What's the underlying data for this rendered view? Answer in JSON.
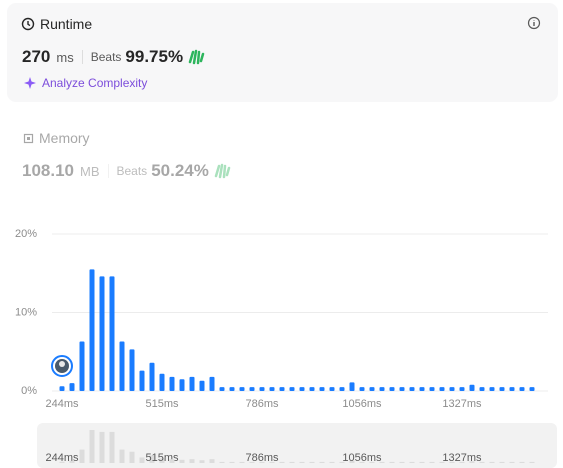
{
  "runtime": {
    "title": "Runtime",
    "value": "270",
    "unit": "ms",
    "beats_label": "Beats",
    "beats": "99.75%",
    "analyze": "Analyze Complexity"
  },
  "memory": {
    "title": "Memory",
    "value": "108.10",
    "unit": "MB",
    "beats_label": "Beats",
    "beats": "50.24%"
  },
  "chart_data": {
    "type": "bar",
    "categories": [
      "244ms",
      null,
      null,
      null,
      null,
      null,
      null,
      null,
      null,
      null,
      "515ms",
      null,
      null,
      null,
      null,
      null,
      null,
      null,
      null,
      null,
      "786ms",
      null,
      null,
      null,
      null,
      null,
      null,
      null,
      null,
      null,
      "1056ms",
      null,
      null,
      null,
      null,
      null,
      null,
      null,
      null,
      null,
      "1327ms",
      null,
      null,
      null,
      null,
      null,
      null,
      null
    ],
    "values": [
      0.6,
      1.0,
      6.3,
      15.5,
      14.6,
      14.6,
      6.3,
      5.3,
      2.6,
      3.6,
      2.2,
      1.8,
      1.5,
      1.8,
      1.3,
      1.8,
      0.5,
      0.5,
      0.5,
      0.5,
      0.5,
      0.5,
      0.5,
      0.5,
      0.5,
      0.5,
      0.5,
      0.5,
      0.5,
      1.1,
      0.5,
      0.5,
      0.5,
      0.5,
      0.5,
      0.5,
      0.5,
      0.5,
      0.5,
      0.5,
      0.5,
      0.8,
      0.5,
      0.5,
      0.5,
      0.5,
      0.5,
      0.5
    ],
    "color": "#1a7cff",
    "ylim": [
      0,
      20
    ],
    "yticks": [
      {
        "value": 0,
        "label": "0%"
      },
      {
        "value": 10,
        "label": "10%"
      },
      {
        "value": 20,
        "label": "20%"
      }
    ],
    "grid": true
  }
}
